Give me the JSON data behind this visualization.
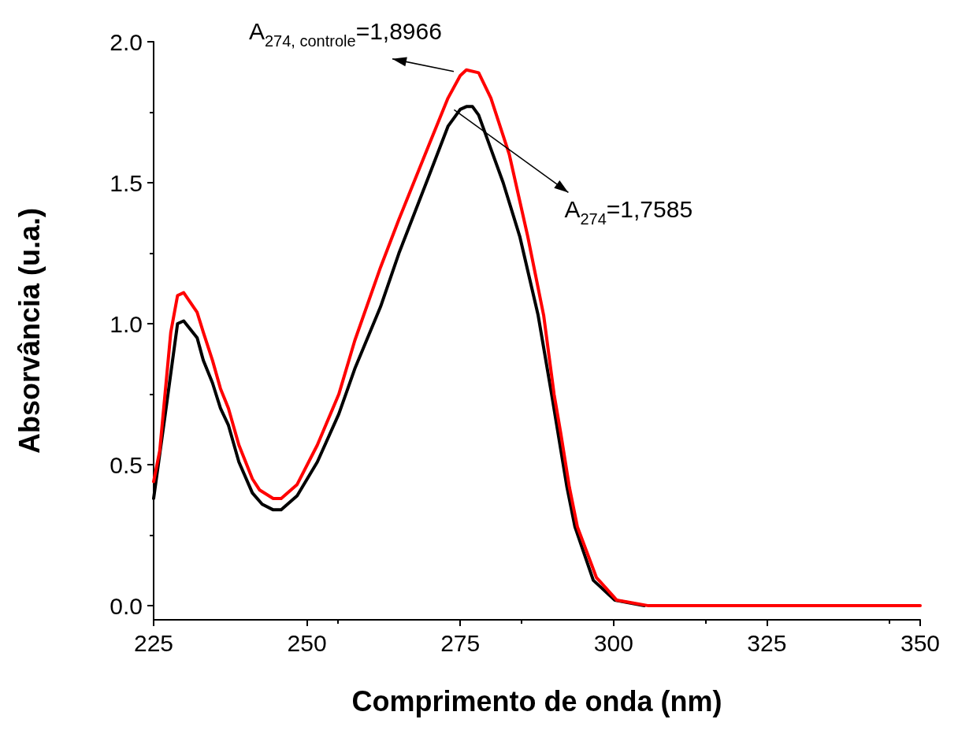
{
  "chart_data": {
    "type": "line",
    "xlabel": "Comprimento de onda (nm)",
    "ylabel": "Absorvância (u.a.)",
    "xlim": [
      225,
      350
    ],
    "xticks": [
      225,
      250,
      275,
      300,
      325,
      350
    ],
    "ylim": [
      -0.05,
      2.0
    ],
    "yticks": [
      {
        "value": 0,
        "label": "0.0"
      },
      {
        "value": 0.5,
        "label": "0.5"
      },
      {
        "value": 1,
        "label": "1.0"
      },
      {
        "value": 1.5,
        "label": "1.5"
      },
      {
        "value": 2,
        "label": "2.0"
      }
    ],
    "grid": false,
    "marker": "none",
    "line_style": "solid",
    "series": [
      {
        "color": "#000000",
        "x": [
          225,
          226.9,
          228.9,
          229.9,
          232.1,
          233.1,
          234.6,
          235.9,
          237.2,
          238.9,
          241.1,
          242.7,
          244.5,
          245.8,
          248.4,
          251.7,
          255.2,
          257.8,
          262,
          265,
          270,
          273,
          275,
          276,
          277,
          278,
          280,
          282,
          284.7,
          287.7,
          289.9,
          292.4,
          293.7,
          296.7,
          300.2,
          305
        ],
        "values": [
          0.38,
          0.68,
          1.0,
          1.01,
          0.95,
          0.87,
          0.79,
          0.7,
          0.64,
          0.51,
          0.4,
          0.36,
          0.34,
          0.34,
          0.39,
          0.51,
          0.68,
          0.84,
          1.06,
          1.25,
          1.53,
          1.7,
          1.76,
          1.77,
          1.77,
          1.74,
          1.62,
          1.5,
          1.31,
          1.03,
          0.75,
          0.42,
          0.28,
          0.09,
          0.02,
          0
        ]
      },
      {
        "color": "#ff0000",
        "x": [
          225,
          226,
          227.8,
          228.9,
          229.9,
          232.1,
          233.1,
          234.6,
          235.9,
          237.2,
          238.9,
          241.1,
          242.3,
          244.5,
          245.8,
          248.4,
          251.7,
          255.2,
          257.8,
          262,
          265,
          270,
          273,
          275,
          276,
          278,
          280,
          283,
          286,
          288.6,
          290.3,
          291.4,
          292.8,
          294.1,
          297.2,
          300.5,
          305.7,
          310,
          320,
          330,
          340,
          350
        ],
        "values": [
          0.44,
          0.55,
          0.97,
          1.1,
          1.11,
          1.04,
          0.97,
          0.87,
          0.77,
          0.7,
          0.57,
          0.45,
          0.41,
          0.38,
          0.38,
          0.43,
          0.57,
          0.75,
          0.94,
          1.2,
          1.37,
          1.64,
          1.8,
          1.88,
          1.9,
          1.89,
          1.8,
          1.6,
          1.31,
          1.03,
          0.75,
          0.61,
          0.42,
          0.28,
          0.1,
          0.02,
          0,
          0,
          0,
          0,
          0,
          0
        ]
      }
    ],
    "annotations": [
      "A$_{274, controle}$=1,8966",
      {
        "text": "A$_{274}$=1,7585",
        "x": 274,
        "y": 1.7585
      }
    ]
  }
}
